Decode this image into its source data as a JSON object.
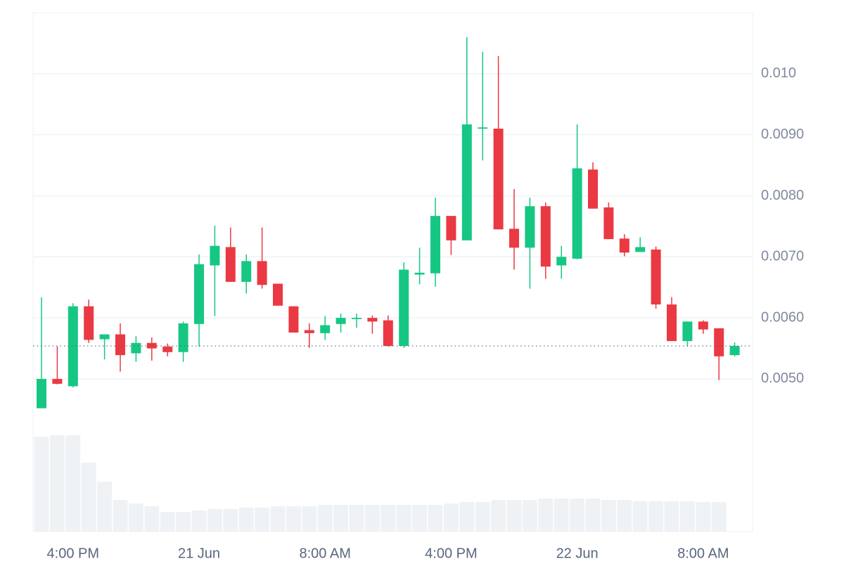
{
  "chart_data": {
    "type": "candlestick",
    "categories": [
      null,
      null,
      "4:00 PM",
      null,
      null,
      null,
      null,
      null,
      null,
      null,
      "21 Jun",
      null,
      null,
      null,
      null,
      null,
      null,
      null,
      "8:00 AM",
      null,
      null,
      null,
      null,
      null,
      null,
      null,
      "4:00 PM",
      null,
      null,
      null,
      null,
      null,
      null,
      null,
      "22 Jun",
      null,
      null,
      null,
      null,
      null,
      null,
      null,
      "8:00 AM",
      null,
      null
    ],
    "open": [
      0.00452,
      0.005,
      0.00488,
      0.00619,
      0.00565,
      0.00573,
      0.00542,
      0.00559,
      0.00553,
      0.00544,
      0.0059,
      0.00686,
      0.00716,
      0.00659,
      0.00693,
      0.00656,
      0.00619,
      0.0058,
      0.00575,
      0.0059,
      0.00598,
      0.006,
      0.00596,
      0.00554,
      0.00671,
      0.00673,
      0.00767,
      0.00727,
      0.0091,
      0.0091,
      0.00746,
      0.00715,
      0.00783,
      0.00686,
      0.00697,
      0.00843,
      0.00781,
      0.0073,
      0.00708,
      0.00712,
      0.00622,
      0.00562,
      0.00594,
      0.00583,
      0.00539
    ],
    "high": [
      0.00634,
      0.00553,
      0.00624,
      0.0063,
      0.00573,
      0.00591,
      0.0057,
      0.00568,
      0.00558,
      0.00594,
      0.00704,
      0.00751,
      0.00748,
      0.00704,
      0.00748,
      0.00656,
      0.00619,
      0.00591,
      0.00603,
      0.00607,
      0.00607,
      0.00604,
      0.00604,
      0.00691,
      0.00715,
      0.00797,
      0.00767,
      0.0106,
      0.01036,
      0.01029,
      0.00811,
      0.00797,
      0.00789,
      0.00718,
      0.00917,
      0.00855,
      0.00789,
      0.00737,
      0.00732,
      0.00717,
      0.00634,
      0.00594,
      0.00596,
      0.00583,
      0.0056
    ],
    "low": [
      0.00452,
      0.00491,
      0.00486,
      0.00559,
      0.00532,
      0.00512,
      0.00528,
      0.0053,
      0.00537,
      0.00528,
      0.00553,
      0.00603,
      0.00659,
      0.0064,
      0.00648,
      0.0062,
      0.00576,
      0.00551,
      0.00564,
      0.00576,
      0.00584,
      0.00574,
      0.00553,
      0.00551,
      0.00655,
      0.00651,
      0.00703,
      0.00727,
      0.00858,
      0.00745,
      0.00679,
      0.00648,
      0.00664,
      0.00664,
      0.00696,
      0.00779,
      0.00729,
      0.00701,
      0.00708,
      0.00615,
      0.00562,
      0.00553,
      0.00574,
      0.00498,
      0.00537
    ],
    "close": [
      0.005,
      0.00492,
      0.00619,
      0.00564,
      0.00573,
      0.00539,
      0.00559,
      0.0055,
      0.00544,
      0.00591,
      0.00688,
      0.00718,
      0.00659,
      0.00693,
      0.00654,
      0.0062,
      0.00576,
      0.00575,
      0.00588,
      0.006,
      0.006,
      0.00594,
      0.00554,
      0.00679,
      0.00674,
      0.00767,
      0.00727,
      0.00917,
      0.00912,
      0.00745,
      0.00715,
      0.00783,
      0.00684,
      0.007,
      0.00845,
      0.00779,
      0.00729,
      0.00707,
      0.00716,
      0.00622,
      0.00562,
      0.00594,
      0.00581,
      0.00537,
      0.00554
    ],
    "volume": [
      135,
      137,
      137,
      98,
      71,
      45,
      40,
      36,
      28,
      28,
      30,
      32,
      32,
      34,
      34,
      36,
      36,
      36,
      38,
      38,
      38,
      38,
      38,
      38,
      38,
      38,
      40,
      42,
      42,
      45,
      45,
      45,
      47,
      47,
      47,
      47,
      45,
      45,
      43,
      43,
      43,
      43,
      42,
      42,
      null
    ],
    "up_color": "#16c784",
    "down_color": "#ea3943",
    "volume_color": "#eff2f5",
    "ylim": [
      0.0025,
      0.011
    ],
    "yticks": [
      {
        "value": 0.005,
        "label": "0.0050"
      },
      {
        "value": 0.006,
        "label": "0.0060"
      },
      {
        "value": 0.007,
        "label": "0.0070"
      },
      {
        "value": 0.008,
        "label": "0.0080"
      },
      {
        "value": 0.009,
        "label": "0.0090"
      },
      {
        "value": 0.01,
        "label": "0.010"
      }
    ],
    "grid": true
  }
}
